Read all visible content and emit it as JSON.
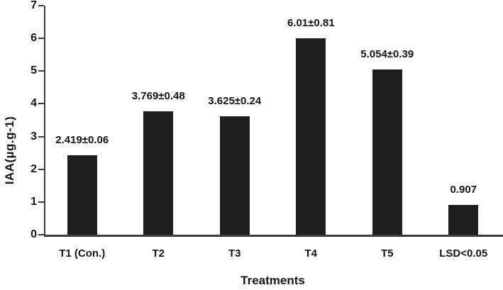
{
  "chart_data": {
    "type": "bar",
    "title": "",
    "xlabel": "Treatments",
    "ylabel": "IAA(µg.g-1)",
    "categories": [
      "T1 (Con.)",
      "T2",
      "T3",
      "T4",
      "T5",
      "LSD<0.05"
    ],
    "values": [
      2.419,
      3.769,
      3.625,
      6.01,
      5.054,
      0.907
    ],
    "bar_labels": [
      "2.419±0.06",
      "3.769±0.48",
      "3.625±0.24",
      "6.01±0.81",
      "5.054±0.39",
      "0.907"
    ],
    "y_ticks": [
      0,
      1,
      2,
      3,
      4,
      5,
      6,
      7
    ],
    "ylim": [
      0,
      7
    ],
    "grid": false,
    "legend": "none",
    "bar_color": "#1f1f1f",
    "axis_color": "#3c3c3c",
    "text_color": "#151515"
  }
}
